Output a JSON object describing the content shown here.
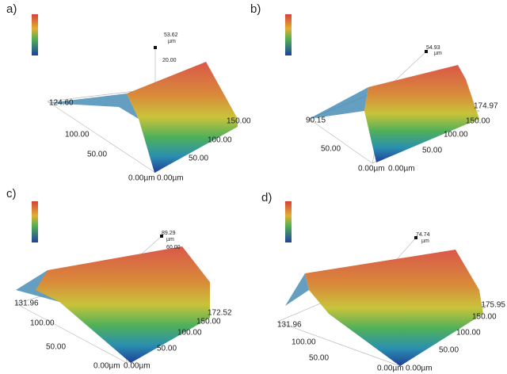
{
  "panels": [
    {
      "label": "a)",
      "axis_labels": [
        "53.62",
        "µm",
        "20.00",
        "124.60",
        "100.00",
        "50.00",
        "0.00µm",
        "0.00µm",
        "50.00",
        "100.00",
        "150.00"
      ]
    },
    {
      "label": "b)",
      "axis_labels": [
        "54.93",
        "µm",
        "90.15",
        "50.00",
        "0.00µm",
        "0.00µm",
        "50.00",
        "100.00",
        "150.00",
        "174.97"
      ]
    },
    {
      "label": "c)",
      "axis_labels": [
        "89.29",
        "µm",
        "60.00",
        "131.96",
        "100.00",
        "50.00",
        "0.00µm",
        "0.00µm",
        "50.00",
        "100.00",
        "150.00",
        "172.52"
      ]
    },
    {
      "label": "d)",
      "axis_labels": [
        "74.74",
        "µm",
        "131.96",
        "100.00",
        "50.00",
        "0.00µm",
        "0.00µm",
        "50.00",
        "100.00",
        "150.00",
        "175.95"
      ]
    }
  ]
}
